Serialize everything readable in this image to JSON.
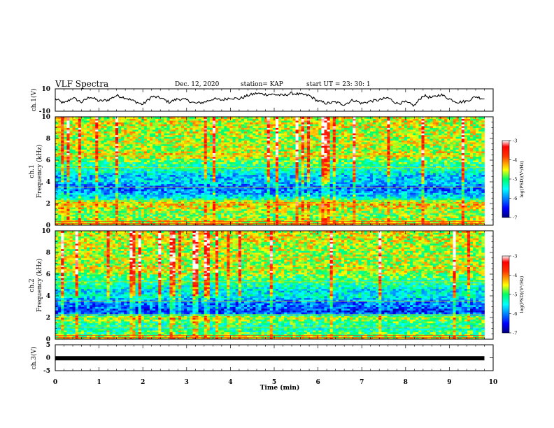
{
  "header": {
    "title": "VLF Spectra",
    "date": "Dec. 12, 2020",
    "station": "station= KAP",
    "start_ut": "start UT =  23: 30: 1"
  },
  "colors": {
    "colormap": [
      "#00008f",
      "#0000ff",
      "#00ffff",
      "#00ff7f",
      "#ffff00",
      "#ff7f00",
      "#ff0000",
      "#ffffff"
    ],
    "trace": "#000000"
  },
  "chart_data": [
    {
      "type": "line",
      "panel": "ch1-waveform",
      "ylabel": "ch.1(V)",
      "ylim": [
        -10,
        10
      ],
      "yticks": [
        "10",
        "-10"
      ],
      "x_range_min": [
        0,
        9.8
      ],
      "series": [
        {
          "x": [
            0,
            0.2,
            0.4,
            0.6,
            0.8,
            1.0,
            1.2,
            1.4,
            1.6,
            1.8,
            2.0,
            2.2,
            2.4,
            2.6,
            2.8,
            3.0,
            3.2,
            3.4,
            3.6,
            3.8,
            4.0,
            4.2,
            4.4,
            4.6,
            4.8,
            5.0,
            5.2,
            5.4,
            5.6,
            5.8,
            6.0,
            6.2,
            6.4,
            6.6,
            6.8,
            7.0,
            7.2,
            7.4,
            7.6,
            7.8,
            8.0,
            8.2,
            8.4,
            8.6,
            8.8,
            9.0,
            9.2,
            9.4,
            9.6,
            9.8
          ],
          "y": [
            1,
            -3,
            2,
            -2,
            3,
            -1,
            0,
            4,
            2,
            -1,
            -4,
            3,
            2,
            -2,
            1,
            0,
            -3,
            -2,
            1,
            0,
            2,
            1,
            4,
            6,
            5,
            5,
            4,
            6,
            5,
            4,
            -1,
            -3,
            -2,
            -4,
            0,
            -3,
            -1,
            0,
            2,
            -3,
            -2,
            -5,
            4,
            2,
            5,
            1,
            -2,
            -1,
            3,
            1
          ]
        }
      ]
    },
    {
      "type": "heatmap",
      "panel": "ch1-spectrogram",
      "ylabel": "Frequency (kHz)",
      "panel_label": "ch.1",
      "ylim": [
        0,
        10
      ],
      "yticks": [
        "0",
        "2",
        "4",
        "6",
        "8",
        "10"
      ],
      "x_range_min": [
        0,
        9.8
      ],
      "band_levels_by_frequency": {
        "freq_khz": [
          0,
          0.5,
          1,
          1.5,
          2,
          2.5,
          3,
          3.5,
          4,
          4.5,
          5,
          5.5,
          6,
          6.5,
          7,
          7.5,
          8,
          8.5,
          9,
          9.5,
          10
        ],
        "log_psd": [
          -4.3,
          -4.6,
          -4.9,
          -4.6,
          -4.3,
          -5.4,
          -5.9,
          -6.2,
          -5.6,
          -5.8,
          -5.3,
          -5.2,
          -4.9,
          -4.4,
          -4.7,
          -4.6,
          -4.7,
          -4.6,
          -4.6,
          -4.5,
          -4.6
        ]
      },
      "colorbar": {
        "label": "log(PSD)(V²/Hz)",
        "range": [
          -7,
          -3
        ],
        "ticks": [
          "-3",
          "-4",
          "-5",
          "-6",
          "-7"
        ]
      }
    },
    {
      "type": "heatmap",
      "panel": "ch2-spectrogram",
      "ylabel": "Frequency (kHz)",
      "panel_label": "ch.2",
      "ylim": [
        0,
        10
      ],
      "yticks": [
        "0",
        "2",
        "4",
        "6",
        "8",
        "10"
      ],
      "x_range_min": [
        0,
        9.8
      ],
      "band_levels_by_frequency": {
        "freq_khz": [
          0,
          0.5,
          1,
          1.5,
          2,
          2.5,
          3,
          3.5,
          4,
          4.5,
          5,
          5.5,
          6,
          6.5,
          7,
          7.5,
          8,
          8.5,
          9,
          9.5,
          10
        ],
        "log_psd": [
          -4.4,
          -5.0,
          -5.3,
          -5.1,
          -4.6,
          -6.4,
          -6.1,
          -6.0,
          -5.4,
          -5.6,
          -5.2,
          -5.1,
          -4.8,
          -4.5,
          -4.7,
          -4.6,
          -4.7,
          -4.6,
          -4.6,
          -4.5,
          -4.6
        ]
      },
      "colorbar": {
        "label": "log(PSD)(V²/Hz)",
        "range": [
          -7,
          -3
        ],
        "ticks": [
          "-3",
          "-4",
          "-5",
          "-6",
          "-7"
        ]
      }
    },
    {
      "type": "line",
      "panel": "ch3-waveform",
      "ylabel": "ch.3(V)",
      "ylim": [
        -5,
        5
      ],
      "yticks": [
        "5",
        "0",
        "-5"
      ],
      "x_range_min": [
        0,
        9.8
      ],
      "series": [
        {
          "x": [
            0,
            9.8
          ],
          "y": [
            -0.2,
            -0.2
          ]
        }
      ]
    }
  ],
  "xaxis": {
    "label": "Time (min)",
    "range": [
      0,
      10
    ],
    "ticks": [
      "0",
      "1",
      "2",
      "3",
      "4",
      "5",
      "6",
      "7",
      "8",
      "9",
      "10"
    ]
  }
}
